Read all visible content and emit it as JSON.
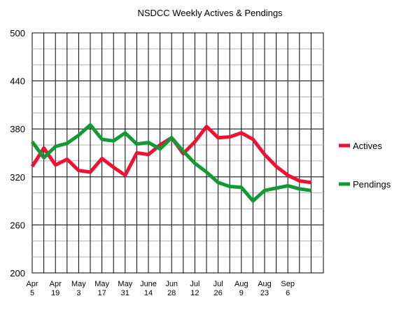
{
  "chart_data": {
    "type": "line",
    "title": "NSDCC Weekly Actives & Pendings",
    "xlabel": "",
    "ylabel": "",
    "ylim": [
      200,
      500
    ],
    "yticks": [
      200,
      260,
      320,
      380,
      440,
      500
    ],
    "grid": true,
    "legend_position": "right",
    "x_tick_labels": [
      [
        "Apr",
        "5"
      ],
      [
        "Apr",
        "19"
      ],
      [
        "May",
        "3"
      ],
      [
        "May",
        "17"
      ],
      [
        "May",
        "31"
      ],
      [
        "June",
        "14"
      ],
      [
        "Jun",
        "28"
      ],
      [
        "Jul",
        "12"
      ],
      [
        "Jul",
        "26"
      ],
      [
        "Aug",
        "9"
      ],
      [
        "Aug",
        "23"
      ],
      [
        "Sep",
        "6"
      ]
    ],
    "n_weeks": 25,
    "series": [
      {
        "name": "Actives",
        "color": "#ee1133",
        "values": [
          333,
          356,
          335,
          342,
          328,
          326,
          343,
          332,
          322,
          350,
          348,
          360,
          369,
          349,
          364,
          383,
          369,
          370,
          375,
          367,
          348,
          333,
          322,
          315,
          313
        ]
      },
      {
        "name": "Pendings",
        "color": "#119933",
        "values": [
          364,
          344,
          358,
          362,
          372,
          385,
          367,
          365,
          375,
          361,
          363,
          355,
          369,
          352,
          337,
          326,
          313,
          308,
          307,
          290,
          303,
          306,
          309,
          305,
          303
        ]
      }
    ]
  }
}
